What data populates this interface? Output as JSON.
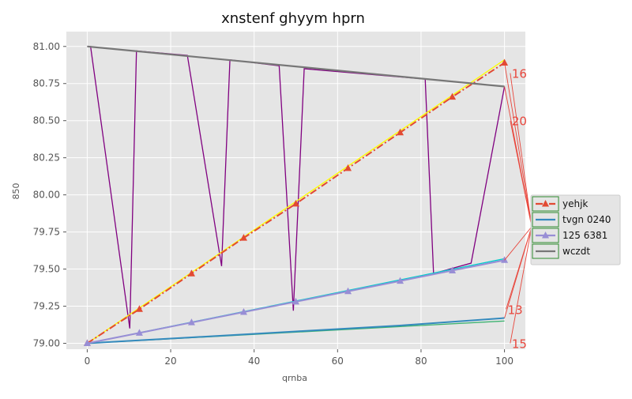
{
  "chart_data": {
    "type": "line",
    "title": "xnstenf ghyym hprn",
    "xlabel": "qrnba",
    "ylabel": "850",
    "xlim": [
      -5,
      105
    ],
    "ylim": [
      78.96,
      81.1
    ],
    "x_ticks": [
      0,
      20,
      40,
      60,
      80,
      100
    ],
    "x_tick_labels": [
      "0",
      "20",
      "40",
      "60",
      "80",
      "100"
    ],
    "y_ticks": [
      79.0,
      79.25,
      79.5,
      79.75,
      80.0,
      80.25,
      80.5,
      80.75,
      81.0
    ],
    "y_tick_labels": [
      "79.00",
      "79.25",
      "79.50",
      "79.75",
      "80.00",
      "80.25",
      "80.50",
      "80.75",
      "81.00"
    ],
    "grid": true,
    "legend_position": "center-right",
    "background": "#e5e5e5",
    "series": [
      {
        "name": "yehjk",
        "color": "#e24a33",
        "style": "dashdot",
        "marker": "triangle",
        "x": [
          0,
          12.5,
          25,
          37.5,
          50,
          62.5,
          75,
          87.5,
          100
        ],
        "values": [
          79.0,
          79.23,
          79.47,
          79.71,
          79.94,
          80.18,
          80.42,
          80.66,
          80.89
        ]
      },
      {
        "name": "tvgn 0240",
        "color": "#348abd",
        "style": "solid",
        "marker": "none",
        "x": [
          0,
          25,
          50,
          75,
          100
        ],
        "values": [
          79.0,
          79.04,
          79.08,
          79.12,
          79.17
        ]
      },
      {
        "name": "125 6381",
        "color": "#988ed5",
        "style": "solid",
        "marker": "triangle",
        "x": [
          0,
          12.5,
          25,
          37.5,
          50,
          62.5,
          75,
          87.5,
          100
        ],
        "values": [
          79.0,
          79.07,
          79.14,
          79.21,
          79.28,
          79.35,
          79.42,
          79.49,
          79.56
        ]
      },
      {
        "name": "wczdt",
        "color": "#777777",
        "style": "solid",
        "marker": "none",
        "x": [
          0,
          100
        ],
        "values": [
          81.0,
          80.73
        ]
      }
    ],
    "extra_lines": [
      {
        "color": "#800080",
        "x": [
          0,
          0.8,
          10.2,
          11.8,
          24,
          32.2,
          34.2,
          46,
          49.4,
          52,
          81,
          83,
          92,
          100
        ],
        "values": [
          81.0,
          81.0,
          79.1,
          80.97,
          80.94,
          79.52,
          80.91,
          80.87,
          79.22,
          80.85,
          80.78,
          79.47,
          79.54,
          80.73
        ]
      },
      {
        "color": "#ffff00",
        "x": [
          0,
          100
        ],
        "values": [
          79.0,
          80.91
        ]
      },
      {
        "color": "#00cccc",
        "x": [
          0,
          100
        ],
        "values": [
          79.0,
          79.57
        ]
      },
      {
        "color": "#3cb371",
        "x": [
          0,
          100
        ],
        "values": [
          79.0,
          79.15
        ]
      }
    ],
    "annotations": [
      {
        "text": "16",
        "point": [
          100,
          80.89
        ],
        "text_at": [
          101,
          80.82
        ]
      },
      {
        "text": "20",
        "point": [
          100,
          80.73
        ],
        "text_at": [
          101,
          80.5
        ]
      },
      {
        "text": "13",
        "point": [
          100,
          79.56
        ],
        "text_at": [
          100,
          79.23
        ]
      },
      {
        "text": "15",
        "point": [
          100,
          79.17
        ],
        "text_at": [
          101,
          79.0
        ]
      }
    ]
  }
}
